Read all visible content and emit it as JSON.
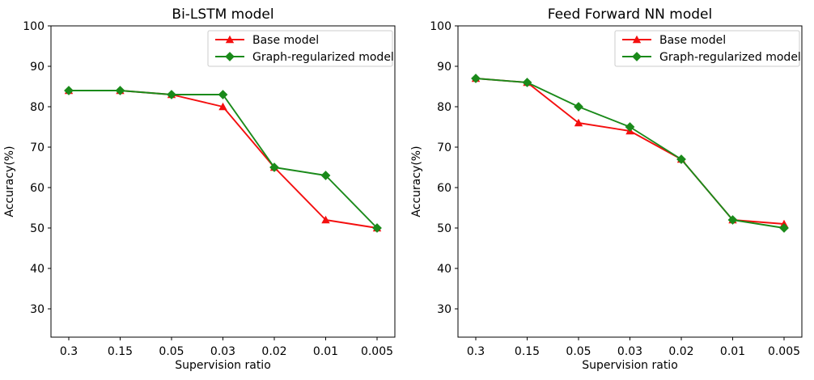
{
  "figure": {
    "background": "#ffffff",
    "spine_color": "#000000",
    "legend_border_color": "#cccccc",
    "legend_bg": "#ffffff"
  },
  "chart_data": [
    {
      "type": "line",
      "title": "Bi-LSTM model",
      "xlabel": "Supervision ratio",
      "ylabel": "Accuracy(%)",
      "categories": [
        "0.3",
        "0.15",
        "0.05",
        "0.03",
        "0.02",
        "0.01",
        "0.005"
      ],
      "yticks": [
        30,
        40,
        50,
        60,
        70,
        80,
        90,
        100
      ],
      "ylim": [
        23,
        100
      ],
      "grid": false,
      "legend_position": "upper right",
      "series": [
        {
          "name": "Base model",
          "color": "#f40f0f",
          "marker": "triangle",
          "values": [
            84,
            84,
            83,
            80,
            65,
            52,
            50
          ]
        },
        {
          "name": "Graph-regularized model",
          "color": "#1a8a1a",
          "marker": "diamond",
          "values": [
            84,
            84,
            83,
            83,
            65,
            63,
            50
          ]
        }
      ]
    },
    {
      "type": "line",
      "title": "Feed Forward NN model",
      "xlabel": "Supervision ratio",
      "ylabel": "Accuracy(%)",
      "categories": [
        "0.3",
        "0.15",
        "0.05",
        "0.03",
        "0.02",
        "0.01",
        "0.005"
      ],
      "yticks": [
        30,
        40,
        50,
        60,
        70,
        80,
        90,
        100
      ],
      "ylim": [
        23,
        100
      ],
      "grid": false,
      "legend_position": "upper right",
      "series": [
        {
          "name": "Base model",
          "color": "#f40f0f",
          "marker": "triangle",
          "values": [
            87,
            86,
            76,
            74,
            67,
            52,
            51
          ]
        },
        {
          "name": "Graph-regularized model",
          "color": "#1a8a1a",
          "marker": "diamond",
          "values": [
            87,
            86,
            80,
            75,
            67,
            52,
            50
          ]
        }
      ]
    }
  ]
}
